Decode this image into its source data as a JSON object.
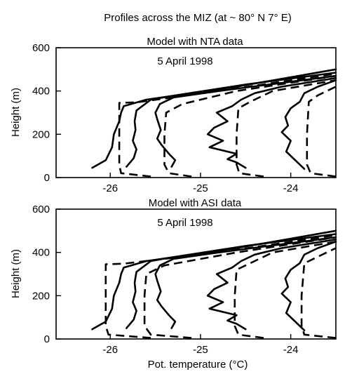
{
  "figure_title": "Profiles across the MIZ (at ~ 80° N 7° E)",
  "chart_data": [
    {
      "type": "line",
      "title": "Model with NTA data",
      "annotation": "5 April 1998",
      "xlabel": "",
      "ylabel": "Height (m)",
      "xlim": [
        -26.6,
        -23.5
      ],
      "ylim": [
        0,
        600
      ],
      "xticks": [
        -26,
        -25,
        -24
      ],
      "yticks": [
        0,
        200,
        400,
        600
      ],
      "grid": false,
      "series": [
        {
          "style": "solid",
          "x": [
            -26.2,
            -26.05,
            -25.98,
            -25.96,
            -25.9,
            -25.88,
            -25.85,
            -25.6,
            -24.6,
            -23.5
          ],
          "y": [
            45,
            80,
            140,
            200,
            260,
            300,
            330,
            360,
            420,
            500
          ]
        },
        {
          "style": "solid",
          "x": [
            -25.82,
            -25.74,
            -25.71,
            -25.75,
            -25.72,
            -25.73,
            -25.71,
            -25.55,
            -25.35,
            -24.5,
            -23.5
          ],
          "y": [
            50,
            90,
            130,
            170,
            220,
            260,
            310,
            360,
            375,
            430,
            485
          ]
        },
        {
          "style": "solid",
          "x": [
            -25.32,
            -25.28,
            -25.35,
            -25.43,
            -25.48,
            -25.44,
            -25.48,
            -25.5,
            -25.45,
            -25.3,
            -24.8,
            -23.5
          ],
          "y": [
            50,
            80,
            110,
            150,
            180,
            220,
            270,
            300,
            340,
            370,
            400,
            470
          ]
        },
        {
          "style": "solid",
          "x": [
            -24.5,
            -24.6,
            -24.7,
            -24.6,
            -24.9,
            -24.75,
            -24.92,
            -24.85,
            -24.7,
            -24.82,
            -24.65,
            -24.55,
            -24.4,
            -24.1,
            -23.5
          ],
          "y": [
            45,
            70,
            85,
            110,
            140,
            170,
            200,
            230,
            260,
            300,
            330,
            360,
            390,
            420,
            460
          ]
        },
        {
          "style": "solid",
          "x": [
            -23.85,
            -23.95,
            -24.05,
            -24.0,
            -24.1,
            -24.03,
            -24.06,
            -24.0,
            -23.9,
            -23.85,
            -23.7,
            -23.5
          ],
          "y": [
            40,
            80,
            120,
            170,
            210,
            240,
            280,
            320,
            350,
            390,
            420,
            450
          ]
        },
        {
          "style": "dash",
          "x": [
            -25.55,
            -25.88,
            -25.9,
            -25.9,
            -25.9,
            -25.7,
            -24.8,
            -23.5
          ],
          "y": [
            5,
            20,
            60,
            200,
            345,
            348,
            400,
            480
          ]
        },
        {
          "style": "dash",
          "x": [
            -25.1,
            -25.35,
            -25.4,
            -25.4,
            -25.38,
            -25.2,
            -24.6,
            -23.5
          ],
          "y": [
            5,
            20,
            60,
            200,
            300,
            340,
            400,
            470
          ]
        },
        {
          "style": "dash",
          "x": [
            -24.3,
            -24.57,
            -24.6,
            -24.6,
            -24.58,
            -24.45,
            -24.2,
            -23.5
          ],
          "y": [
            5,
            20,
            60,
            200,
            320,
            350,
            400,
            450
          ]
        },
        {
          "style": "dash",
          "x": [
            -23.5,
            -23.78,
            -23.82,
            -23.82,
            -23.8,
            -23.7,
            -23.5
          ],
          "y": [
            5,
            20,
            60,
            200,
            350,
            380,
            420
          ]
        }
      ]
    },
    {
      "type": "line",
      "title": "Model with ASI data",
      "annotation": "5 April 1998",
      "xlabel": "Pot. temperature (°C)",
      "ylabel": "Height (m)",
      "xlim": [
        -26.6,
        -23.5
      ],
      "ylim": [
        0,
        600
      ],
      "xticks": [
        -26,
        -25,
        -24
      ],
      "yticks": [
        0,
        200,
        400,
        600
      ],
      "grid": false,
      "series": [
        {
          "style": "solid",
          "x": [
            -26.2,
            -26.05,
            -25.98,
            -25.96,
            -25.9,
            -25.88,
            -25.85,
            -25.6,
            -24.6,
            -23.5
          ],
          "y": [
            45,
            80,
            140,
            200,
            260,
            300,
            330,
            360,
            420,
            500
          ]
        },
        {
          "style": "solid",
          "x": [
            -25.82,
            -25.74,
            -25.71,
            -25.75,
            -25.72,
            -25.73,
            -25.71,
            -25.55,
            -25.35,
            -24.5,
            -23.5
          ],
          "y": [
            50,
            90,
            130,
            170,
            220,
            260,
            310,
            360,
            375,
            430,
            485
          ]
        },
        {
          "style": "solid",
          "x": [
            -25.32,
            -25.28,
            -25.35,
            -25.43,
            -25.48,
            -25.44,
            -25.48,
            -25.5,
            -25.45,
            -25.3,
            -24.8,
            -23.5
          ],
          "y": [
            50,
            80,
            110,
            150,
            180,
            220,
            270,
            300,
            340,
            370,
            400,
            470
          ]
        },
        {
          "style": "solid",
          "x": [
            -24.5,
            -24.6,
            -24.7,
            -24.6,
            -24.9,
            -24.75,
            -24.92,
            -24.85,
            -24.7,
            -24.82,
            -24.65,
            -24.55,
            -24.4,
            -24.1,
            -23.5
          ],
          "y": [
            45,
            70,
            85,
            110,
            140,
            170,
            200,
            230,
            260,
            300,
            330,
            360,
            390,
            420,
            460
          ]
        },
        {
          "style": "solid",
          "x": [
            -23.85,
            -23.95,
            -24.05,
            -24.0,
            -24.1,
            -24.03,
            -24.06,
            -24.0,
            -23.9,
            -23.85,
            -23.7,
            -23.5
          ],
          "y": [
            40,
            80,
            120,
            170,
            210,
            240,
            280,
            320,
            350,
            390,
            420,
            450
          ]
        },
        {
          "style": "dash",
          "x": [
            -25.55,
            -26.02,
            -26.05,
            -26.05,
            -26.05,
            -25.85,
            -24.8,
            -23.5
          ],
          "y": [
            5,
            20,
            60,
            200,
            345,
            348,
            400,
            480
          ]
        },
        {
          "style": "dash",
          "x": [
            -25.1,
            -25.55,
            -25.62,
            -25.62,
            -25.6,
            -25.4,
            -24.6,
            -23.5
          ],
          "y": [
            5,
            20,
            60,
            200,
            300,
            340,
            400,
            470
          ]
        },
        {
          "style": "dash",
          "x": [
            -24.3,
            -24.58,
            -24.62,
            -24.62,
            -24.6,
            -24.45,
            -24.2,
            -23.5
          ],
          "y": [
            5,
            20,
            60,
            200,
            320,
            350,
            400,
            450
          ]
        },
        {
          "style": "dash",
          "x": [
            -23.5,
            -23.85,
            -23.88,
            -23.88,
            -23.85,
            -23.7,
            -23.5
          ],
          "y": [
            5,
            20,
            60,
            200,
            350,
            380,
            420
          ]
        }
      ]
    }
  ]
}
